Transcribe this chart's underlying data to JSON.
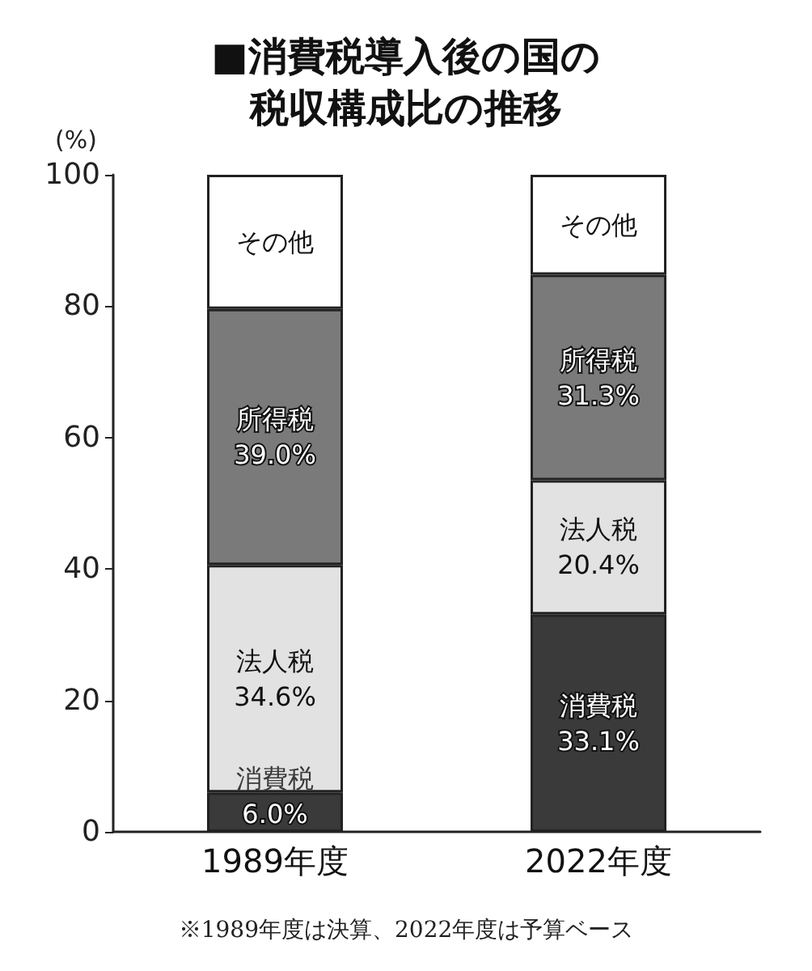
{
  "chart_data": {
    "type": "bar",
    "title": "■消費税導入後の国の税収構成比の推移",
    "ylabel": "(%)",
    "categories": [
      "1989年度",
      "2022年度"
    ],
    "stacked": true,
    "ylim": [
      0,
      100
    ],
    "yticks": [
      0,
      20,
      40,
      60,
      80,
      100
    ],
    "grid": false,
    "legend": false,
    "series": [
      {
        "name": "消費税",
        "color": "#3a3a3a",
        "values": [
          6.0,
          33.1
        ],
        "value_labels": [
          "6.0%",
          "33.1%"
        ]
      },
      {
        "name": "法人税",
        "color": "#e2e2e2",
        "values": [
          34.6,
          20.4
        ],
        "value_labels": [
          "34.6%",
          "20.4%"
        ]
      },
      {
        "name": "所得税",
        "color": "#7a7a7a",
        "values": [
          39.0,
          31.3
        ],
        "value_labels": [
          "39.0%",
          "31.3%"
        ]
      },
      {
        "name": "その他",
        "color": "#ffffff",
        "values": [
          20.4,
          15.2
        ],
        "value_labels": [
          null,
          null
        ]
      }
    ],
    "annotations": [
      "※1989年度は決算、2022年度は予算ベース"
    ]
  }
}
